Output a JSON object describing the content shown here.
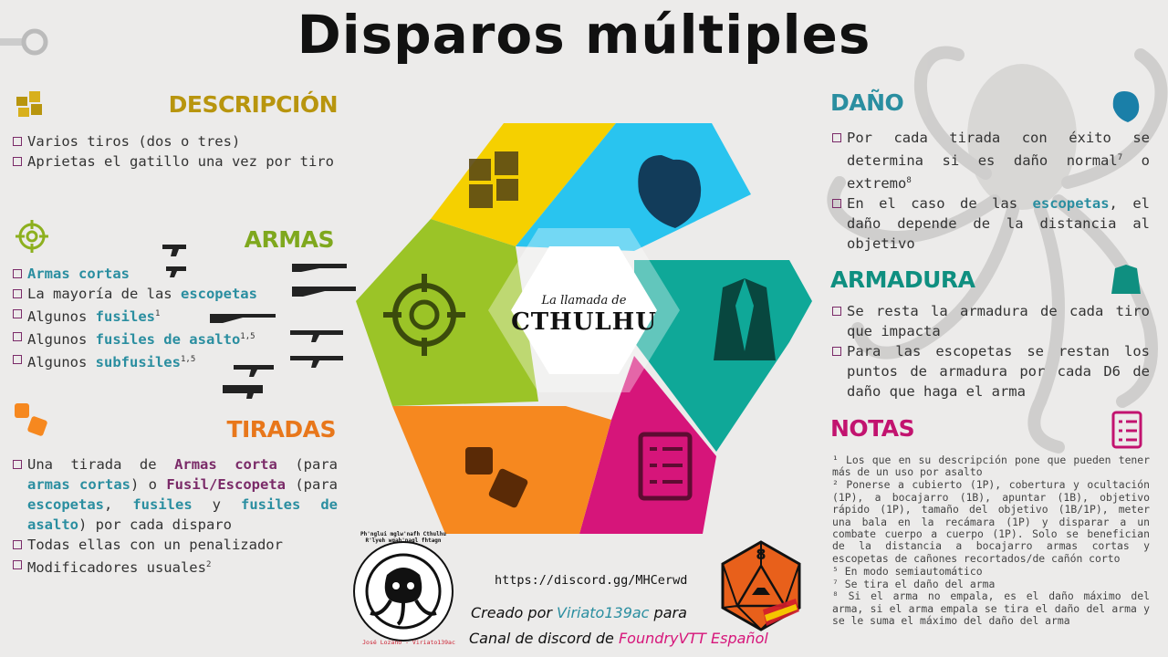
{
  "title": "Disparos múltiples",
  "descripcion": {
    "heading": "DESCRIPCIÓN",
    "items": [
      "Varios tiros (dos o tres)",
      "Aprietas el gatillo una vez por tiro"
    ]
  },
  "armas": {
    "heading": "ARMAS",
    "items": [
      {
        "pre": "",
        "hl": "Armas cortas",
        "sup": ""
      },
      {
        "pre": "La mayoría de las ",
        "hl": "escopetas",
        "sup": ""
      },
      {
        "pre": "Algunos ",
        "hl": "fusiles",
        "sup": "1"
      },
      {
        "pre": "Algunos ",
        "hl": "fusiles de asalto",
        "sup": "1,5"
      },
      {
        "pre": "Algunos ",
        "hl": "subfusiles",
        "sup": "1,5"
      }
    ]
  },
  "tiradas": {
    "heading": "TIRADAS",
    "t1": "Una tirada de ",
    "t2": "Armas corta",
    "t3": " (para ",
    "t4": "armas cortas",
    "t5": ") o ",
    "t6": "Fusil/Escopeta",
    "t7": " (para ",
    "t8": "escopetas",
    "t9": ", ",
    "t10": "fusiles",
    "t11": " y ",
    "t12": "fusiles de asalto",
    "t13": ") por cada disparo",
    "item2": "Todas ellas con un penalizador",
    "item3": "Modificadores usuales",
    "item3_sup": "2"
  },
  "dano": {
    "heading": "DAÑO",
    "item1a": "Por cada tirada con éxito se determina si es daño normal",
    "item1_sup1": "7",
    "item1b": " o extremo",
    "item1_sup2": "8",
    "item2a": "En el caso de las ",
    "item2_hl": "escopetas",
    "item2b": ", el daño depende de la distancia al objetivo"
  },
  "armadura": {
    "heading": "ARMADURA",
    "items": [
      "Se resta la armadura de cada tiro que impacta",
      "Para las escopetas se restan los puntos de armadura por cada D6 de daño que haga el arma"
    ]
  },
  "notas": {
    "heading": "NOTAS",
    "items": [
      "¹ Los que en su descripción pone que pueden tener más de un uso por asalto",
      "² Ponerse a cubierto (1P), cobertura y ocultación (1P), a bocajarro (1B), apuntar (1B), objetivo rápido (1P), tamaño del objetivo (1B/1P), meter una bala en la recámara (1P) y disparar a un combate cuerpo a cuerpo (1P). Solo se benefician de la distancia a bocajarro armas cortas y escopetas de cañones recortados/de cañón corto",
      "⁵ En modo semiautomático",
      "⁷ Se tira el daño del arma",
      "⁸ Si el arma no empala, es el daño máximo del arma, si el arma empala se tira el daño del arma y se le suma el máximo del daño del arma"
    ]
  },
  "center": {
    "logo_small": "La llamada de",
    "logo_big": "CTHULHU"
  },
  "footer": {
    "discord": "https://discord.gg/MHCerwd",
    "credit1": "Creado por ",
    "credit1_hl": "Viriato139ac",
    "credit1b": " para",
    "credit2": "Canal de discord de ",
    "credit2_hl": "FoundryVTT Español",
    "seal_text": "Ph'nglui mglw'nafh Cthulhu R'lyeh wgah'nagl fhtagn",
    "seal_sig": "José Lozano - Viriato139ac",
    "die_number": "8"
  },
  "colors": {
    "yellow": "#f5d000",
    "cyan": "#29c4ef",
    "teal": "#0fa898",
    "magenta": "#d6157a",
    "orange": "#f6881f",
    "green": "#9bc427",
    "dark_yellow": "#b8950e",
    "teal_text": "#2a8ea0",
    "orange_text": "#e8771b",
    "green_text": "#7fa81e"
  },
  "icons": [
    "puzzle-icon",
    "target-icon",
    "dice-icon",
    "heart-icon",
    "suit-icon",
    "checklist-icon",
    "gun-icon"
  ]
}
